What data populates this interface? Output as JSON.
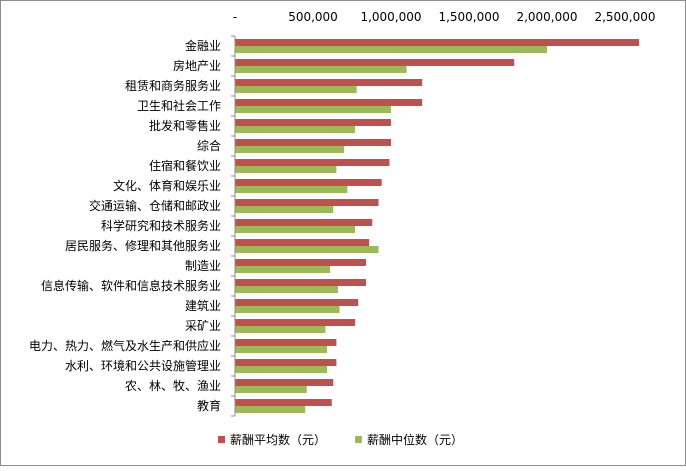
{
  "chart_data": {
    "type": "bar",
    "orientation": "horizontal",
    "x_axis_position": "top",
    "grid": false,
    "legend_position": "bottom",
    "xlim": [
      0,
      2500000
    ],
    "x_ticks": [
      0,
      500000,
      1000000,
      1500000,
      2000000,
      2500000
    ],
    "x_tick_labels": [
      "-",
      "500,000",
      "1,000,000",
      "1,500,000",
      "2,000,000",
      "2,500,000"
    ],
    "categories": [
      "金融业",
      "房地产业",
      "租赁和商务服务业",
      "卫生和社会工作",
      "批发和零售业",
      "综合",
      "住宿和餐饮业",
      "文化、体育和娱乐业",
      "交通运输、仓储和邮政业",
      "科学研究和技术服务业",
      "居民服务、修理和其他服务业",
      "制造业",
      "信息传输、软件和信息技术服务业",
      "建筑业",
      "采矿业",
      "电力、热力、燃气及水生产和供应业",
      "水利、环境和公共设施管理业",
      "农、林、牧、渔业",
      "教育"
    ],
    "series": [
      {
        "name": "薪酬平均数（元）",
        "color": "#c0504d",
        "values": [
          2590000,
          1790000,
          1200000,
          1200000,
          1000000,
          1000000,
          990000,
          940000,
          920000,
          880000,
          860000,
          840000,
          840000,
          790000,
          770000,
          650000,
          650000,
          630000,
          620000
        ]
      },
      {
        "name": "薪酬中位数（元）",
        "color": "#9bbb59",
        "values": [
          2000000,
          1100000,
          780000,
          1000000,
          770000,
          700000,
          650000,
          720000,
          630000,
          770000,
          920000,
          610000,
          660000,
          670000,
          580000,
          590000,
          590000,
          460000,
          450000
        ]
      }
    ]
  }
}
